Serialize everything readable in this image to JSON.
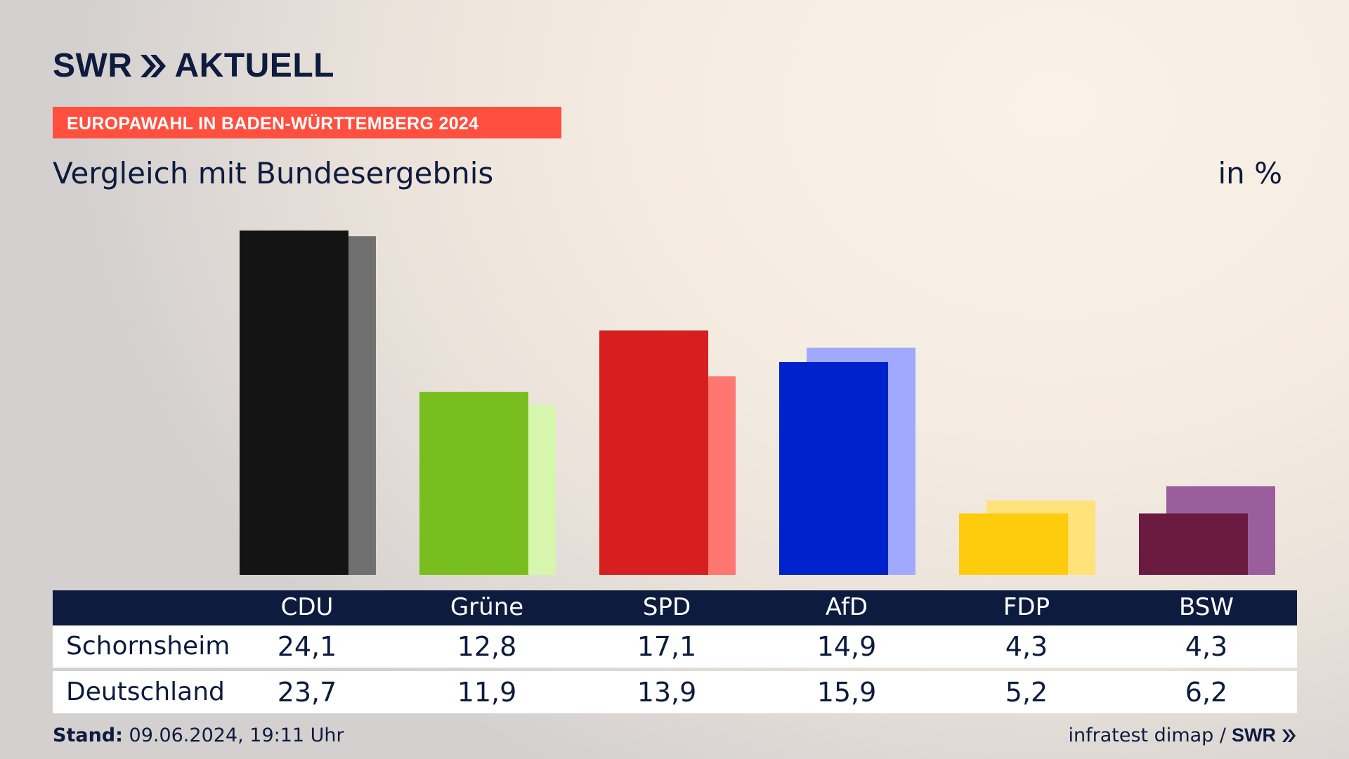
{
  "header": {
    "logo_brand": "SWR",
    "logo_product": "AKTUELL",
    "banner": "EUROPAWAHL IN BADEN-WÜRTTEMBERG 2024",
    "title": "Vergleich mit Bundesergebnis",
    "unit": "in %"
  },
  "chart_data": {
    "type": "bar",
    "categories": [
      "CDU",
      "Grüne",
      "SPD",
      "AfD",
      "FDP",
      "BSW"
    ],
    "series": [
      {
        "name": "Schornsheim",
        "values": [
          24.1,
          12.8,
          17.1,
          14.9,
          4.3,
          4.3
        ],
        "colors": [
          "#141414",
          "#78be1e",
          "#d71f1f",
          "#0022cc",
          "#ffcc0d",
          "#6b1a40"
        ]
      },
      {
        "name": "Deutschland",
        "values": [
          23.7,
          11.9,
          13.9,
          15.9,
          5.2,
          6.2
        ],
        "colors": [
          "#707070",
          "#d6f5ad",
          "#ff7770",
          "#9faaff",
          "#ffe27a",
          "#9b5e9d"
        ]
      }
    ],
    "ylim": [
      0,
      24.1
    ],
    "grid": false,
    "legend": "table-below"
  },
  "table": {
    "rows": [
      {
        "label": "Schornsheim",
        "values": [
          "24,1",
          "12,8",
          "17,1",
          "14,9",
          "4,3",
          "4,3"
        ]
      },
      {
        "label": "Deutschland",
        "values": [
          "23,7",
          "11,9",
          "13,9",
          "15,9",
          "5,2",
          "6,2"
        ]
      }
    ]
  },
  "footer": {
    "stand_label": "Stand:",
    "stand_value": "09.06.2024, 19:11 Uhr",
    "source": "infratest dimap /",
    "source_logo": "SWR"
  }
}
